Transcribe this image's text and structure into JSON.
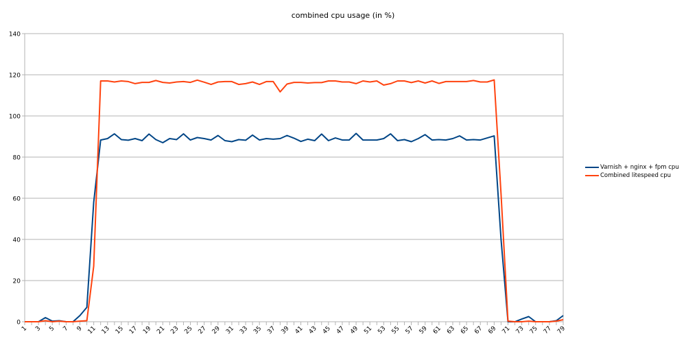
{
  "chart_data": {
    "type": "line",
    "title": "combined cpu usage (in %)",
    "xlabel": "",
    "ylabel": "",
    "ylim": [
      0,
      140
    ],
    "yticks": [
      0,
      20,
      40,
      60,
      80,
      100,
      120,
      140
    ],
    "grid": true,
    "legend_position": "right",
    "x": [
      1,
      2,
      3,
      4,
      5,
      6,
      7,
      8,
      9,
      10,
      11,
      12,
      13,
      14,
      15,
      16,
      17,
      18,
      19,
      20,
      21,
      22,
      23,
      24,
      25,
      26,
      27,
      28,
      29,
      30,
      31,
      32,
      33,
      34,
      35,
      36,
      37,
      38,
      39,
      40,
      41,
      42,
      43,
      44,
      45,
      46,
      47,
      48,
      49,
      50,
      51,
      52,
      53,
      54,
      55,
      56,
      57,
      58,
      59,
      60,
      61,
      62,
      63,
      64,
      65,
      66,
      67,
      68,
      69,
      70,
      71,
      72,
      73,
      74,
      75,
      76,
      77,
      78,
      79
    ],
    "xtick_labels": [
      "1",
      "3",
      "5",
      "7",
      "9",
      "11",
      "13",
      "15",
      "17",
      "19",
      "21",
      "23",
      "25",
      "27",
      "29",
      "31",
      "33",
      "35",
      "37",
      "39",
      "41",
      "43",
      "45",
      "47",
      "49",
      "51",
      "53",
      "55",
      "57",
      "59",
      "61",
      "63",
      "65",
      "67",
      "69",
      "71",
      "73",
      "75",
      "77",
      "79"
    ],
    "series": [
      {
        "name": "Varnish + nginx + fpm cpu",
        "color": "#004586",
        "values": [
          0,
          0,
          0,
          2,
          0.3,
          0.5,
          0,
          0,
          3,
          7,
          58,
          88.3,
          89,
          91.3,
          88.5,
          88.2,
          89,
          88,
          91.2,
          88.5,
          87,
          89,
          88.5,
          91.3,
          88.3,
          89.5,
          89,
          88.3,
          90.5,
          88,
          87.5,
          88.5,
          88.2,
          90.7,
          88.3,
          89,
          88.7,
          89,
          90.5,
          89.2,
          87.6,
          88.7,
          88,
          91.2,
          88,
          89.3,
          88.3,
          88.3,
          91.5,
          88.3,
          88.3,
          88.3,
          89,
          91.3,
          88,
          88.5,
          87.5,
          89,
          90.9,
          88.3,
          88.5,
          88.3,
          89,
          90.3,
          88.3,
          88.5,
          88.3,
          89.3,
          90.3,
          40,
          0,
          0,
          1.3,
          2.5,
          0,
          0,
          0,
          0.5,
          3
        ]
      },
      {
        "name": "Combined litespeed cpu",
        "color": "#ff420e",
        "values": [
          0,
          0,
          0,
          0.5,
          0,
          0.3,
          0,
          0,
          0.3,
          0.5,
          27,
          117,
          117,
          116.5,
          117,
          116.7,
          115.7,
          116.3,
          116.3,
          117.2,
          116.3,
          116,
          116.5,
          116.7,
          116.3,
          117.4,
          116.4,
          115.3,
          116.5,
          116.7,
          116.7,
          115.3,
          115.7,
          116.5,
          115.3,
          116.7,
          116.7,
          111.7,
          115.5,
          116.3,
          116.3,
          116,
          116.2,
          116.2,
          117,
          117,
          116.5,
          116.5,
          115.7,
          117,
          116.5,
          117,
          115,
          115.7,
          117,
          117,
          116.2,
          117,
          116,
          117,
          115.8,
          116.7,
          116.7,
          116.7,
          116.7,
          117.2,
          116.5,
          116.5,
          117.5,
          62,
          0.3,
          0,
          0,
          0.3,
          0,
          0,
          0,
          0.3,
          1
        ]
      }
    ]
  },
  "colors": {
    "grid": "#b3b3b3",
    "axis": "#b3b3b3",
    "text": "#000000"
  }
}
